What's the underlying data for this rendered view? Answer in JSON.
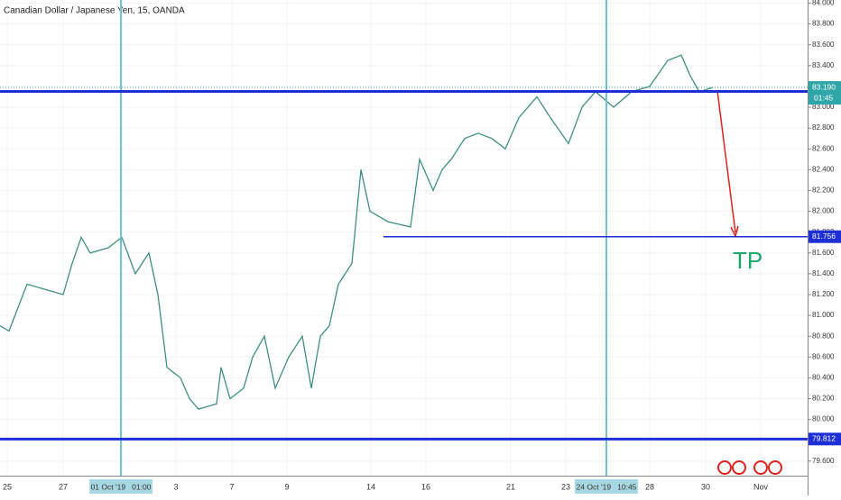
{
  "chart_data": {
    "type": "line",
    "title": "Canadian Dollar / Japanese Yen, 15, OANDA",
    "x": [
      0,
      2,
      6,
      10,
      14,
      16,
      18,
      20,
      24,
      27,
      30,
      33,
      35,
      37,
      40,
      42,
      44,
      48,
      49,
      51,
      54,
      56,
      58.6,
      61,
      64,
      67,
      69,
      71,
      73,
      75,
      78,
      80,
      82,
      86,
      91,
      93,
      96,
      98,
      100,
      103,
      106,
      109,
      112,
      115,
      119,
      122,
      126,
      129,
      132,
      136,
      140,
      144,
      148,
      151,
      153,
      155,
      158
    ],
    "values": [
      80.9,
      80.85,
      81.3,
      81.25,
      81.2,
      81.5,
      81.75,
      81.6,
      81.65,
      81.75,
      81.4,
      81.6,
      81.2,
      80.5,
      80.4,
      80.2,
      80.1,
      80.15,
      80.5,
      80.2,
      80.3,
      80.6,
      80.8,
      80.3,
      80.6,
      80.8,
      80.3,
      80.8,
      80.9,
      81.3,
      81.5,
      82.4,
      82.0,
      81.9,
      81.85,
      82.5,
      82.2,
      82.4,
      82.5,
      82.7,
      82.75,
      82.7,
      82.6,
      82.9,
      83.1,
      82.9,
      82.65,
      83.0,
      83.15,
      83.0,
      83.15,
      83.2,
      83.45,
      83.5,
      83.3,
      83.15,
      83.19
    ],
    "color": "#3f8f7f",
    "xlim": [
      0,
      179
    ],
    "ylim": [
      79.46,
      84.03
    ],
    "xticks": [
      {
        "value": 1.6,
        "label": "25"
      },
      {
        "value": 14,
        "label": "27"
      },
      {
        "value": 39,
        "label": "3"
      },
      {
        "value": 51.4,
        "label": "7"
      },
      {
        "value": 63.6,
        "label": "9"
      },
      {
        "value": 82.2,
        "label": "14"
      },
      {
        "value": 94.4,
        "label": "16"
      },
      {
        "value": 113.2,
        "label": "21"
      },
      {
        "value": 125.4,
        "label": "23"
      },
      {
        "value": 144,
        "label": "28"
      },
      {
        "value": 156.4,
        "label": "30"
      },
      {
        "value": 168.6,
        "label": "Nov"
      }
    ],
    "yticks": [
      {
        "value": 79.6,
        "label": "79.600"
      },
      {
        "value": 79.8,
        "label": "79.800"
      },
      {
        "value": 80.0,
        "label": "80.000"
      },
      {
        "value": 80.2,
        "label": "80.200"
      },
      {
        "value": 80.4,
        "label": "80.400"
      },
      {
        "value": 80.6,
        "label": "80.600"
      },
      {
        "value": 80.8,
        "label": "80.800"
      },
      {
        "value": 81.0,
        "label": "81.000"
      },
      {
        "value": 81.2,
        "label": "81.200"
      },
      {
        "value": 81.4,
        "label": "81.400"
      },
      {
        "value": 81.6,
        "label": "81.600"
      },
      {
        "value": 81.8,
        "label": "81.800"
      },
      {
        "value": 82.0,
        "label": "82.000"
      },
      {
        "value": 82.2,
        "label": "82.200"
      },
      {
        "value": 82.4,
        "label": "82.400"
      },
      {
        "value": 82.6,
        "label": "82.600"
      },
      {
        "value": 82.8,
        "label": "82.800"
      },
      {
        "value": 83.0,
        "label": "83.000"
      },
      {
        "value": 83.2,
        "label": "83.200"
      },
      {
        "value": 83.4,
        "label": "83.400"
      },
      {
        "value": 83.6,
        "label": "83.600"
      },
      {
        "value": 83.8,
        "label": "83.800"
      },
      {
        "value": 84.0,
        "label": "84.000"
      }
    ],
    "levels": [
      {
        "value": 83.152,
        "from": 0,
        "color": "#1f2fd6",
        "width": 3
      },
      {
        "value": 79.812,
        "from": 0,
        "color": "#1f2fd6",
        "width": 3
      },
      {
        "value": 81.756,
        "from": 85,
        "color": "#1f2fd6",
        "width": 1.5
      }
    ],
    "current_price": {
      "value": 83.19,
      "label": "83.190"
    },
    "countdown": "01:45",
    "vlines": [
      {
        "x": 26.8,
        "label": "01 Oct '19   01:00"
      },
      {
        "x": 134.4,
        "label": "24 Oct '19   10:45"
      }
    ],
    "annotation": "TP"
  }
}
